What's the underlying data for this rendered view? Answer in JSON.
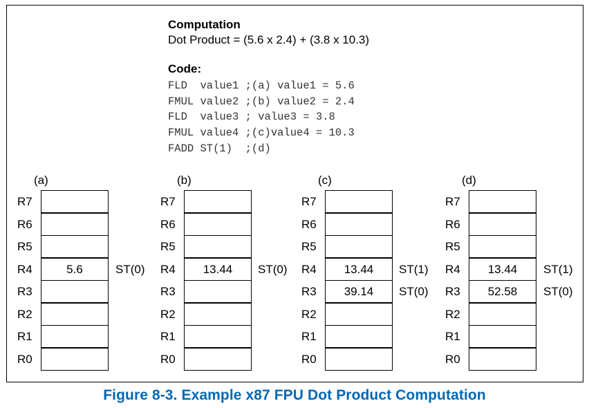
{
  "computation": {
    "title": "Computation",
    "text": "Dot Product = (5.6 x 2.4) + (3.8 x 10.3)"
  },
  "code": {
    "title": "Code:",
    "lines": [
      "FLD  value1 ;(a) value1 = 5.6",
      "FMUL value2 ;(b) value2 = 2.4",
      "FLD  value3 ; value3 = 3.8",
      "FMUL value4 ;(c)value4 = 10.3",
      "FADD ST(1)  ;(d)"
    ]
  },
  "register_names": [
    "R7",
    "R6",
    "R5",
    "R4",
    "R3",
    "R2",
    "R1",
    "R0"
  ],
  "stacks": [
    {
      "label": "(a)",
      "values": [
        "",
        "",
        "",
        "5.6",
        "",
        "",
        "",
        ""
      ],
      "st_labels": [
        "",
        "",
        "",
        "ST(0)",
        "",
        "",
        "",
        ""
      ]
    },
    {
      "label": "(b)",
      "values": [
        "",
        "",
        "",
        "13.44",
        "",
        "",
        "",
        ""
      ],
      "st_labels": [
        "",
        "",
        "",
        "ST(0)",
        "",
        "",
        "",
        ""
      ]
    },
    {
      "label": "(c)",
      "values": [
        "",
        "",
        "",
        "13.44",
        "39.14",
        "",
        "",
        ""
      ],
      "st_labels": [
        "",
        "",
        "",
        "ST(1)",
        "ST(0)",
        "",
        "",
        ""
      ]
    },
    {
      "label": "(d)",
      "values": [
        "",
        "",
        "",
        "13.44",
        "52.58",
        "",
        "",
        ""
      ],
      "st_labels": [
        "",
        "",
        "",
        "ST(1)",
        "ST(0)",
        "",
        "",
        ""
      ]
    }
  ],
  "caption": "Figure 8-3.  Example x87 FPU Dot Product Computation",
  "colors": {
    "caption": "#0068b5",
    "border": "#000000"
  }
}
